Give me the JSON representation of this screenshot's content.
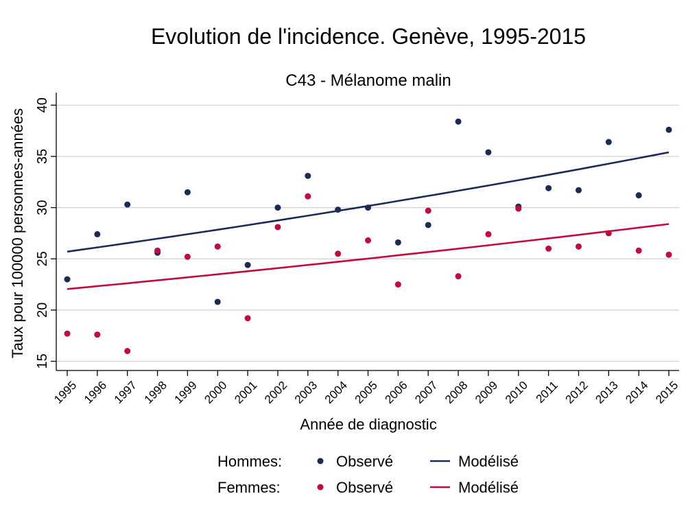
{
  "chart_data": {
    "type": "scatter",
    "title": "Evolution de l'incidence. Genève, 1995-2015",
    "subtitle": "C43 - Mélanome malin",
    "xlabel": "Année de diagnostic",
    "ylabel": "Taux pour 100000 personnes-années",
    "x": [
      1995,
      1996,
      1997,
      1998,
      1999,
      2000,
      2001,
      2002,
      2003,
      2004,
      2005,
      2006,
      2007,
      2008,
      2009,
      2010,
      2011,
      2012,
      2013,
      2014,
      2015
    ],
    "xticks": [
      "1995",
      "1996",
      "1997",
      "1998",
      "1999",
      "2000",
      "2001",
      "2002",
      "2003",
      "2004",
      "2005",
      "2006",
      "2007",
      "2008",
      "2009",
      "2010",
      "2011",
      "2012",
      "2013",
      "2014",
      "2015"
    ],
    "yticks": [
      "15",
      "20",
      "25",
      "30",
      "35",
      "40"
    ],
    "ylim": [
      13.5,
      41
    ],
    "grid": true,
    "legend_placement": "bottom",
    "series": [
      {
        "group": "Hommes",
        "kind": "observed",
        "color": "#1b2a56",
        "values": [
          23.0,
          27.4,
          30.3,
          25.6,
          31.5,
          20.8,
          24.4,
          30.0,
          33.1,
          29.8,
          30.0,
          26.6,
          28.3,
          38.4,
          35.4,
          30.1,
          31.9,
          31.7,
          36.4,
          31.2,
          37.6
        ]
      },
      {
        "group": "Femmes",
        "kind": "observed",
        "color": "#c20a3c",
        "values": [
          17.7,
          17.6,
          16.0,
          25.8,
          25.2,
          26.2,
          19.2,
          28.1,
          31.1,
          25.5,
          26.8,
          22.5,
          29.7,
          23.3,
          27.4,
          29.9,
          26.0,
          26.2,
          27.5,
          25.8,
          25.4
        ]
      },
      {
        "group": "Hommes",
        "kind": "model",
        "color": "#1b2a56",
        "x": [
          1995,
          2015
        ],
        "values": [
          25.7,
          35.4
        ]
      },
      {
        "group": "Femmes",
        "kind": "model",
        "color": "#c20a3c",
        "x": [
          1995,
          2015
        ],
        "values": [
          22.05,
          28.4
        ]
      }
    ],
    "legend": {
      "rows": [
        {
          "group_label": "Hommes:",
          "observed_label": "Observé",
          "model_label": "Modélisé",
          "color": "#1b2a56"
        },
        {
          "group_label": "Femmes:",
          "observed_label": "Observé",
          "model_label": "Modélisé",
          "color": "#c20a3c"
        }
      ]
    }
  }
}
